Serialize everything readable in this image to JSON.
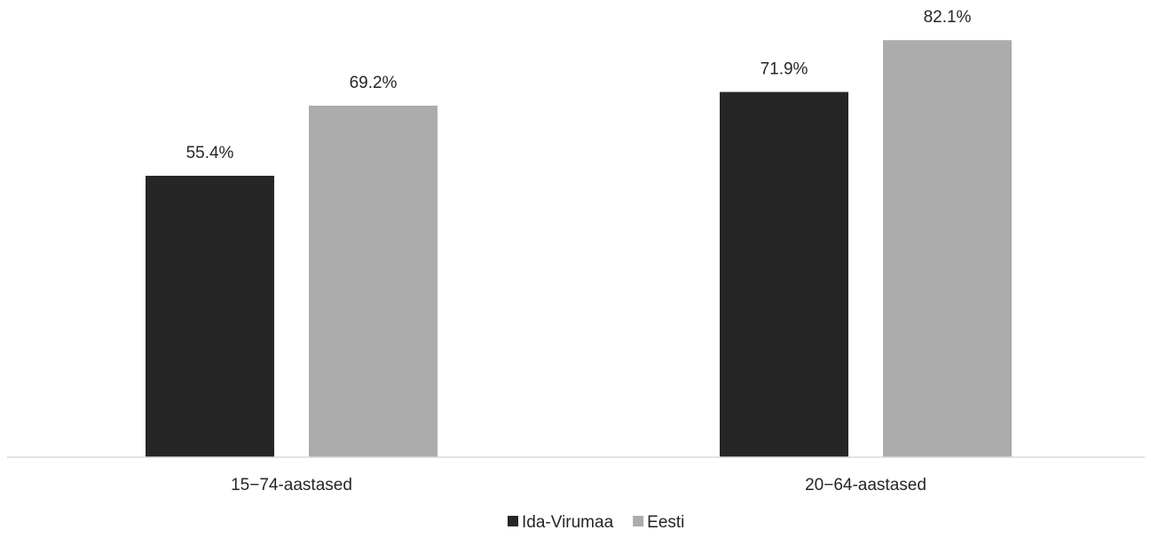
{
  "chart_data": {
    "type": "bar",
    "categories": [
      "15−74-aastased",
      "20−64-aastased"
    ],
    "series": [
      {
        "name": "Ida-Virumaa",
        "values": [
          55.4,
          71.9
        ],
        "color": "#262626"
      },
      {
        "name": "Eesti",
        "values": [
          69.2,
          82.1
        ],
        "color": "#acacac"
      }
    ],
    "data_labels": [
      [
        "55.4%",
        "71.9%"
      ],
      [
        "69.2%",
        "82.1%"
      ]
    ],
    "ylim": [
      0,
      90
    ],
    "grid": false,
    "legend_position": "bottom-center"
  }
}
